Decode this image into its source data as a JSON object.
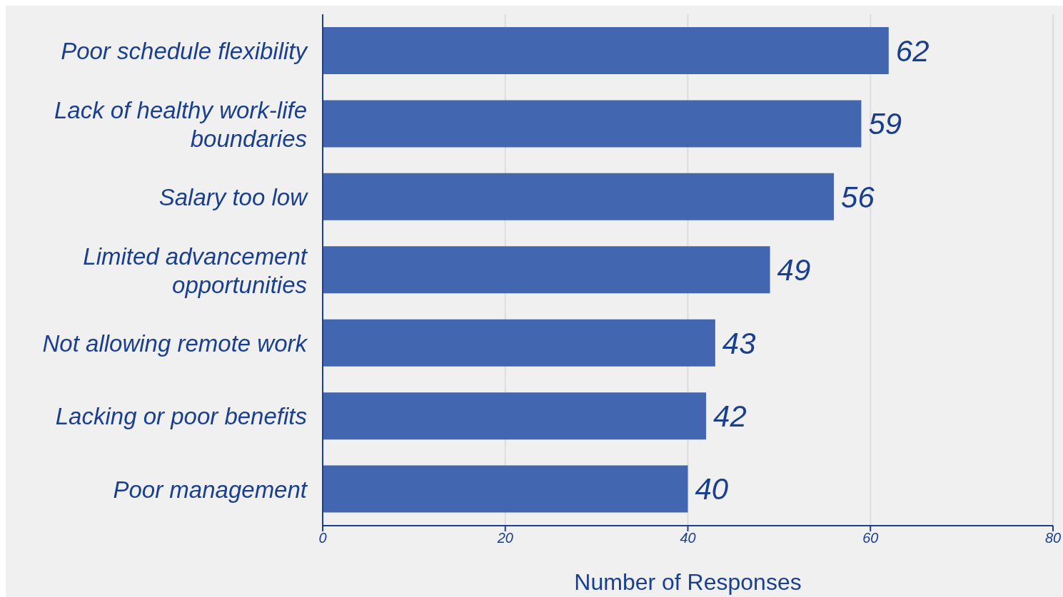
{
  "chart_data": {
    "type": "bar",
    "orientation": "horizontal",
    "xlabel": "Number of Responses",
    "categories": [
      "Poor schedule flexibility",
      "Lack of healthy work-life boundaries",
      "Salary too low",
      "Limited advancement opportunities",
      "Not allowing remote work",
      "Lacking or poor benefits",
      "Poor management"
    ],
    "values": [
      62,
      59,
      56,
      49,
      43,
      42,
      40
    ],
    "color": "#4267b0",
    "xlim": [
      0,
      80
    ],
    "xticks": [
      0,
      20,
      40,
      60,
      80
    ],
    "grid": "x",
    "data_labels": true
  }
}
